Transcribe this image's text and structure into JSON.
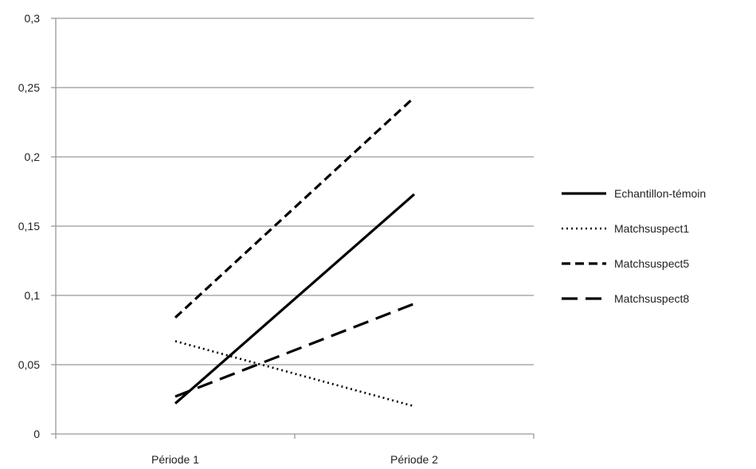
{
  "chart_data": {
    "type": "line",
    "categories": [
      "Période 1",
      "Période 2"
    ],
    "series": [
      {
        "name": "Echantillon-témoin",
        "values": [
          0.022,
          0.173
        ],
        "style": "solid"
      },
      {
        "name": "Matchsuspect1",
        "values": [
          0.067,
          0.02
        ],
        "style": "dotted"
      },
      {
        "name": "Matchsuspect5",
        "values": [
          0.084,
          0.243
        ],
        "style": "short-dash"
      },
      {
        "name": "Matchsuspect8",
        "values": [
          0.027,
          0.094
        ],
        "style": "long-dash"
      }
    ],
    "yticks": [
      0,
      0.05,
      0.1,
      0.15,
      0.2,
      0.25,
      0.3
    ],
    "ytick_labels": [
      "0",
      "0,05",
      "0,1",
      "0,15",
      "0,2",
      "0,25",
      "0,3"
    ],
    "ylim": [
      0,
      0.3
    ],
    "grid": true,
    "legend": "right",
    "colors": {
      "lines": "#000000",
      "grid": "#999999",
      "axis": "#999999",
      "text": "#222222"
    }
  }
}
